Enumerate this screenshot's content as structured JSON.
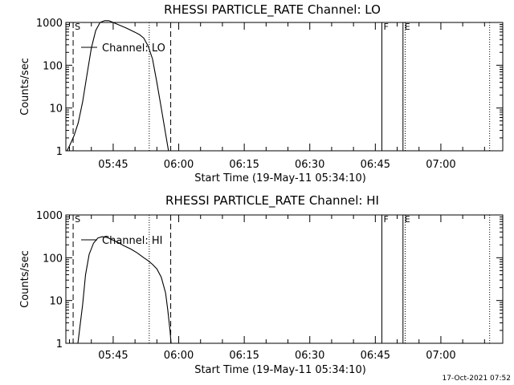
{
  "footer": {
    "timestamp": "17-Oct-2021 07:52"
  },
  "chart_data": [
    {
      "type": "line",
      "title": "RHESSI PARTICLE_RATE Channel: LO",
      "xlabel": "Start Time (19-May-11 05:34:10)",
      "ylabel": "Counts/sec",
      "yscale": "log",
      "ylim": [
        1,
        1000
      ],
      "xlim": [
        "05:34:10",
        "07:14:10"
      ],
      "x_ticks": [
        "05:45",
        "06:00",
        "06:15",
        "06:30",
        "06:45",
        "07:00"
      ],
      "y_ticks": [
        "1",
        "10",
        "100",
        "1000"
      ],
      "legend": "Channel: LO",
      "markers": [
        {
          "label": "S",
          "time": "05:35:50",
          "style": "dashed"
        },
        {
          "label": "",
          "time": "05:53:15",
          "style": "dotted"
        },
        {
          "label": "",
          "time": "05:58:10",
          "style": "dashed"
        },
        {
          "label": "F",
          "time": "06:46:30",
          "style": "solid"
        },
        {
          "label": "E",
          "time": "06:51:20",
          "style": "solid"
        },
        {
          "label": "",
          "time": "06:51:50",
          "style": "dotted"
        },
        {
          "label": "",
          "time": "07:11:10",
          "style": "dotted"
        }
      ],
      "series": [
        {
          "name": "Channel: LO",
          "points": [
            [
              "05:34:25",
              1.0
            ],
            [
              "05:35:00",
              1.3
            ],
            [
              "05:36:00",
              2.2
            ],
            [
              "05:37:00",
              4.5
            ],
            [
              "05:38:00",
              14
            ],
            [
              "05:39:00",
              60
            ],
            [
              "05:40:00",
              250
            ],
            [
              "05:41:00",
              650
            ],
            [
              "05:42:00",
              1000
            ],
            [
              "05:43:00",
              1100
            ],
            [
              "05:44:00",
              1100
            ],
            [
              "05:45:00",
              1000
            ],
            [
              "05:46:00",
              900
            ],
            [
              "05:47:00",
              820
            ],
            [
              "05:48:00",
              740
            ],
            [
              "05:49:00",
              660
            ],
            [
              "05:50:00",
              590
            ],
            [
              "05:51:00",
              520
            ],
            [
              "05:52:00",
              430
            ],
            [
              "05:53:00",
              280
            ],
            [
              "05:54:00",
              140
            ],
            [
              "05:55:00",
              40
            ],
            [
              "05:56:00",
              10
            ],
            [
              "05:57:00",
              2.5
            ],
            [
              "05:57:40",
              1.0
            ]
          ]
        }
      ]
    },
    {
      "type": "line",
      "title": "RHESSI PARTICLE_RATE Channel: HI",
      "xlabel": "Start Time (19-May-11 05:34:10)",
      "ylabel": "Counts/sec",
      "yscale": "log",
      "ylim": [
        1,
        1000
      ],
      "xlim": [
        "05:34:10",
        "07:14:10"
      ],
      "x_ticks": [
        "05:45",
        "06:00",
        "06:15",
        "06:30",
        "06:45",
        "07:00"
      ],
      "y_ticks": [
        "1",
        "10",
        "100",
        "1000"
      ],
      "legend": "Channel: HI",
      "markers": [
        {
          "label": "S",
          "time": "05:35:50",
          "style": "dashed"
        },
        {
          "label": "",
          "time": "05:53:15",
          "style": "dotted"
        },
        {
          "label": "",
          "time": "05:58:10",
          "style": "dashed"
        },
        {
          "label": "F",
          "time": "06:46:30",
          "style": "solid"
        },
        {
          "label": "E",
          "time": "06:51:20",
          "style": "solid"
        },
        {
          "label": "",
          "time": "06:51:50",
          "style": "dotted"
        },
        {
          "label": "",
          "time": "07:11:10",
          "style": "dotted"
        }
      ],
      "series": [
        {
          "name": "Channel: HI",
          "points": [
            [
              "05:36:55",
              1.0
            ],
            [
              "05:37:30",
              3
            ],
            [
              "05:38:00",
              8
            ],
            [
              "05:38:40",
              40
            ],
            [
              "05:39:30",
              120
            ],
            [
              "05:40:30",
              220
            ],
            [
              "05:41:30",
              290
            ],
            [
              "05:42:30",
              310
            ],
            [
              "05:43:30",
              300
            ],
            [
              "05:44:30",
              270
            ],
            [
              "05:46:00",
              230
            ],
            [
              "05:47:30",
              190
            ],
            [
              "05:49:00",
              160
            ],
            [
              "05:50:30",
              130
            ],
            [
              "05:52:00",
              100
            ],
            [
              "05:53:00",
              85
            ],
            [
              "05:54:00",
              70
            ],
            [
              "05:55:00",
              55
            ],
            [
              "05:56:00",
              35
            ],
            [
              "05:57:00",
              15
            ],
            [
              "05:57:30",
              6
            ],
            [
              "05:58:00",
              2
            ],
            [
              "05:58:15",
              1.0
            ]
          ]
        }
      ]
    }
  ]
}
